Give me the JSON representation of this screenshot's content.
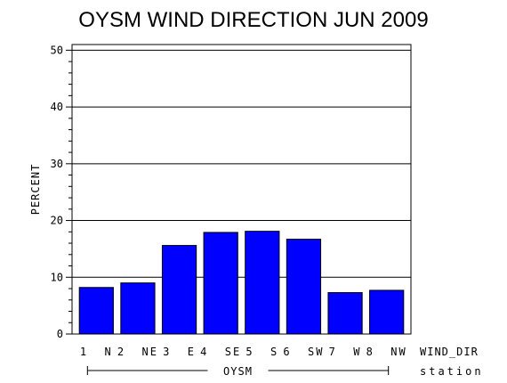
{
  "chart_data": {
    "type": "bar",
    "title": "OYSM WIND DIRECTION JUN 2009",
    "ylabel": "PERCENT",
    "xlabel": "WIND_DIR",
    "group_axis_label": "station",
    "group_label": "OYSM",
    "categories": [
      "1 N",
      "2 NE",
      "3 E",
      "4 SE",
      "5 S",
      "6 SW",
      "7 W",
      "8 NW"
    ],
    "values": [
      8.2,
      9.0,
      15.6,
      17.9,
      18.1,
      16.7,
      7.3,
      7.7
    ],
    "ylim": [
      0,
      51
    ],
    "yticks": [
      0,
      10,
      20,
      30,
      40,
      50
    ],
    "grid": true,
    "bar_color": "#0000ff"
  }
}
